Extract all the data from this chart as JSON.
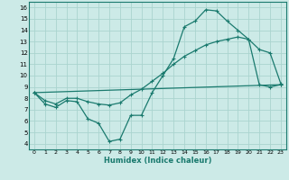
{
  "background_color": "#cceae7",
  "grid_color": "#aad4cf",
  "line_color": "#1a7a6e",
  "xlabel": "Humidex (Indice chaleur)",
  "xlim": [
    -0.5,
    23.5
  ],
  "ylim": [
    3.5,
    16.5
  ],
  "xticks": [
    0,
    1,
    2,
    3,
    4,
    5,
    6,
    7,
    8,
    9,
    10,
    11,
    12,
    13,
    14,
    15,
    16,
    17,
    18,
    19,
    20,
    21,
    22,
    23
  ],
  "yticks": [
    4,
    5,
    6,
    7,
    8,
    9,
    10,
    11,
    12,
    13,
    14,
    15,
    16
  ],
  "line1_x": [
    0,
    1,
    2,
    3,
    4,
    5,
    6,
    7,
    8,
    9,
    10,
    11,
    12,
    13,
    14,
    15,
    16,
    17,
    18,
    19,
    20,
    21,
    22,
    23
  ],
  "line1_y": [
    8.5,
    7.5,
    7.2,
    7.8,
    7.7,
    6.2,
    5.8,
    4.2,
    4.4,
    6.5,
    6.5,
    8.5,
    10.0,
    11.5,
    14.3,
    14.8,
    15.8,
    15.7,
    14.8,
    14.0,
    13.2,
    12.3,
    12.0,
    9.3
  ],
  "line2_x": [
    0,
    1,
    2,
    3,
    4,
    5,
    6,
    7,
    8,
    9,
    10,
    11,
    12,
    13,
    14,
    15,
    16,
    17,
    18,
    19,
    20,
    21,
    22,
    23
  ],
  "line2_y": [
    8.5,
    7.8,
    7.5,
    8.0,
    8.0,
    7.7,
    7.5,
    7.4,
    7.6,
    8.3,
    8.8,
    9.5,
    10.2,
    11.0,
    11.7,
    12.2,
    12.7,
    13.0,
    13.2,
    13.4,
    13.2,
    9.2,
    9.0,
    9.2
  ],
  "line3_x": [
    0,
    23
  ],
  "line3_y": [
    8.5,
    9.2
  ]
}
